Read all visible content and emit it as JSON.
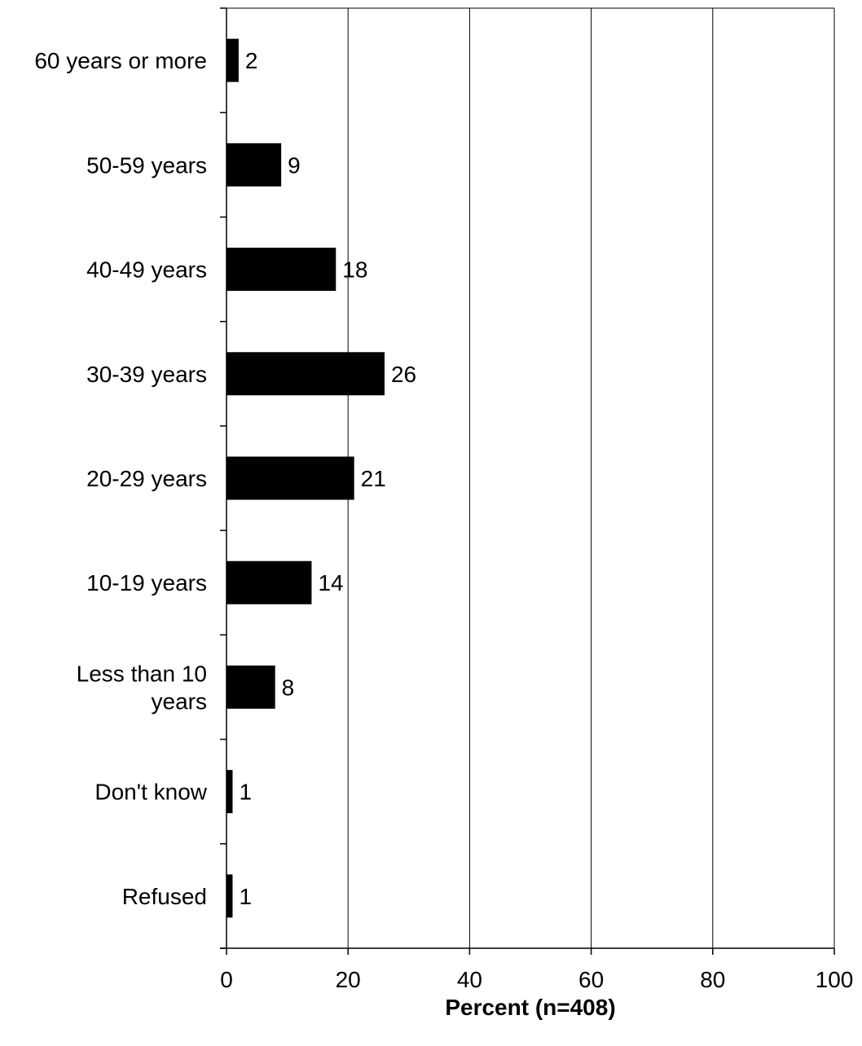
{
  "chart_data": {
    "type": "bar",
    "orientation": "horizontal",
    "categories": [
      "60 years or more",
      "50-59 years",
      "40-49 years",
      "30-39 years",
      "20-29 years",
      "10-19 years",
      "Less than 10 years",
      "Don't know",
      "Refused"
    ],
    "category_lines": [
      [
        "60 years or more"
      ],
      [
        "50-59 years"
      ],
      [
        "40-49 years"
      ],
      [
        "30-39 years"
      ],
      [
        "20-29 years"
      ],
      [
        "10-19 years"
      ],
      [
        "Less than 10",
        "years"
      ],
      [
        "Don't know"
      ],
      [
        "Refused"
      ]
    ],
    "values": [
      2,
      9,
      18,
      26,
      21,
      14,
      8,
      1,
      1
    ],
    "value_labels": [
      "2",
      "9",
      "18",
      "26",
      "21",
      "14",
      "8",
      "1",
      "1"
    ],
    "xlabel": "Percent (n=408)",
    "xlim": [
      0,
      100
    ],
    "xticks": [
      0,
      20,
      40,
      60,
      80,
      100
    ],
    "xtick_labels": [
      "0",
      "20",
      "40",
      "60",
      "80",
      "100"
    ],
    "grid": "vertical",
    "bar_color": "#000000"
  }
}
